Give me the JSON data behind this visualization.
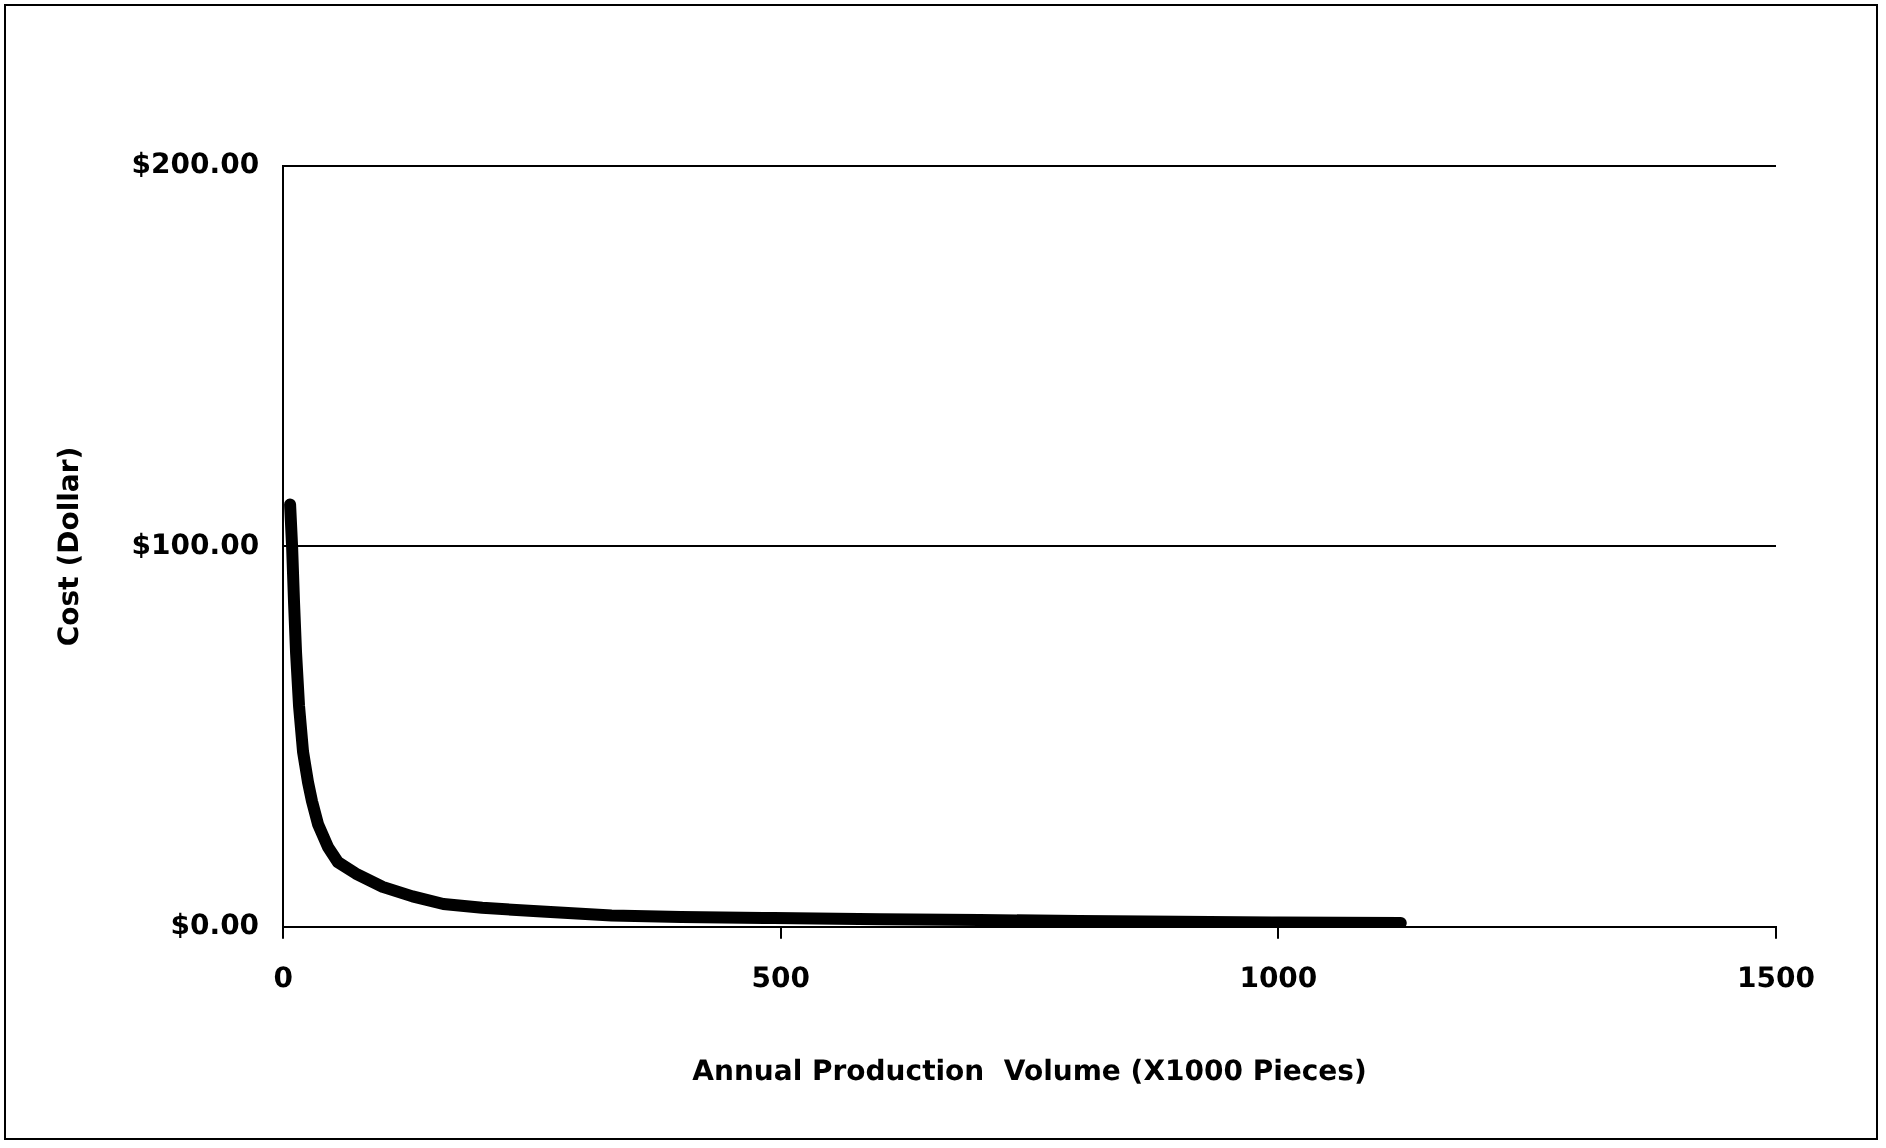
{
  "chart_data": {
    "type": "line",
    "xlabel": "Annual Production  Volume (X1000 Pieces)",
    "ylabel": "Cost (Dollar)",
    "series": [
      {
        "color": "#000000",
        "x": [
          7,
          9,
          11,
          13,
          16,
          20,
          25,
          29,
          35,
          45,
          55,
          73,
          100,
          130,
          161,
          200,
          260,
          330,
          400,
          493,
          600,
          700,
          800,
          900,
          1000,
          1123
        ],
        "values": [
          111,
          100,
          85,
          72,
          58,
          46,
          38,
          33,
          27,
          21,
          17,
          14,
          10.5,
          8,
          6,
          5,
          4,
          3,
          2.6,
          2.3,
          2,
          1.8,
          1.5,
          1.3,
          1.1,
          1
        ]
      }
    ],
    "xlim": [
      0,
      1500
    ],
    "xticks": [
      0,
      500,
      1000,
      1500
    ],
    "ylim": [
      0,
      200
    ],
    "yticks": [
      {
        "value": 0,
        "label": "$0.00"
      },
      {
        "value": 100,
        "label": "$100.00"
      },
      {
        "value": 200,
        "label": "$200.00"
      }
    ],
    "grid": "y",
    "legend": false,
    "marker": "none",
    "line_style": "solid"
  }
}
